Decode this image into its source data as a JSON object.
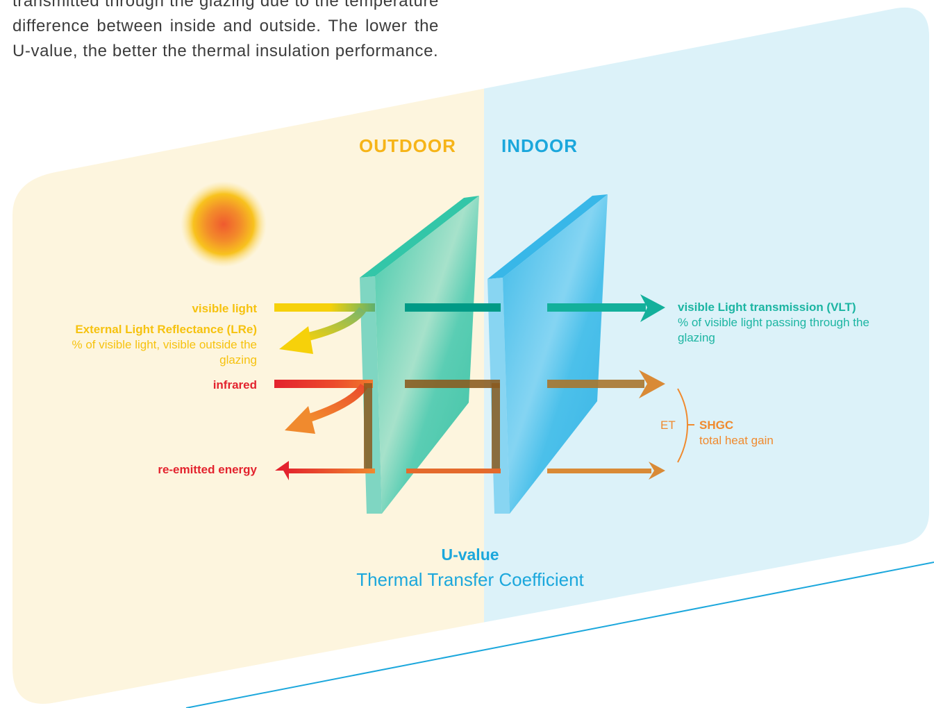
{
  "intro_text": "transmitted through the glazing due to the temperature difference between inside and outside. The lower the U-value, the better the thermal insulation performance.",
  "zones": {
    "outdoor": "OUTDOOR",
    "indoor": "INDOOR"
  },
  "left_labels": {
    "visible_light": "visible light",
    "lre_title": "External Light Reflectance (LRe)",
    "lre_desc": "% of visible light, visible outside the glazing",
    "infrared": "infrared",
    "reemitted": "re-emitted energy"
  },
  "right_labels": {
    "vlt_title": "visible Light transmission (VLT)",
    "vlt_desc": "% of visible light passing through the glazing",
    "et": "ET",
    "shgc_title": "SHGC",
    "shgc_desc": "total heat gain"
  },
  "uvalue": {
    "title": "U-value",
    "subtitle": "Thermal Transfer Coefficient"
  },
  "colors": {
    "outdoor_bg": "#fdf5de",
    "indoor_bg": "#dcf2f9",
    "visible_light": "#f6d10a",
    "infrared": "#e3232e",
    "transmitted": "#009a86",
    "heat": "#d98a36",
    "outdoor_label": "#f6b418",
    "indoor_label": "#1ba7dc"
  }
}
